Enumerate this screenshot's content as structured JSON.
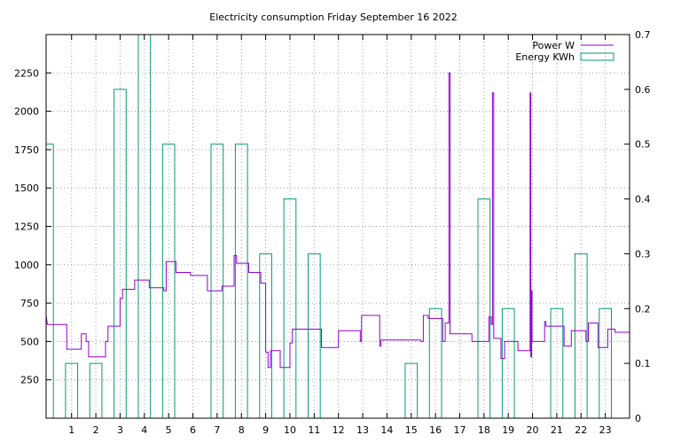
{
  "chart_data": {
    "type": "line",
    "title": "Electricity consumption Friday September 16 2022",
    "xlim": [
      -0.05,
      24.0
    ],
    "ylim": [
      0,
      2500
    ],
    "y2lim": [
      0,
      0.7
    ],
    "grid": true,
    "legend_position": "top-right",
    "x_ticks": [
      1,
      2,
      3,
      4,
      5,
      6,
      7,
      8,
      9,
      10,
      11,
      12,
      13,
      14,
      15,
      16,
      17,
      18,
      19,
      20,
      21,
      22,
      23
    ],
    "y_ticks": [
      250,
      500,
      750,
      1000,
      1250,
      1500,
      1750,
      2000,
      2250
    ],
    "y2_ticks": [
      "0",
      "0.1",
      "0.2",
      "0.3",
      "0.4",
      "0.5",
      "0.6",
      "0.7"
    ],
    "series": [
      {
        "name": "Power W",
        "color": "#9400d3",
        "style": "steps",
        "axis": "y",
        "points": [
          [
            -0.05,
            670
          ],
          [
            0.0,
            610
          ],
          [
            0.8,
            610
          ],
          [
            0.8,
            450
          ],
          [
            1.4,
            450
          ],
          [
            1.4,
            550
          ],
          [
            1.6,
            550
          ],
          [
            1.6,
            500
          ],
          [
            1.7,
            500
          ],
          [
            1.7,
            400
          ],
          [
            2.4,
            400
          ],
          [
            2.4,
            500
          ],
          [
            2.5,
            500
          ],
          [
            2.5,
            600
          ],
          [
            3.0,
            600
          ],
          [
            3.0,
            780
          ],
          [
            3.1,
            780
          ],
          [
            3.1,
            840
          ],
          [
            3.6,
            840
          ],
          [
            3.6,
            900
          ],
          [
            4.2,
            900
          ],
          [
            4.2,
            850
          ],
          [
            4.8,
            850
          ],
          [
            4.8,
            830
          ],
          [
            4.9,
            830
          ],
          [
            4.9,
            1020
          ],
          [
            5.3,
            1020
          ],
          [
            5.3,
            950
          ],
          [
            5.9,
            950
          ],
          [
            5.9,
            930
          ],
          [
            6.6,
            930
          ],
          [
            6.6,
            830
          ],
          [
            7.2,
            830
          ],
          [
            7.2,
            860
          ],
          [
            7.7,
            860
          ],
          [
            7.7,
            1060
          ],
          [
            7.8,
            1060
          ],
          [
            7.8,
            1010
          ],
          [
            8.3,
            1010
          ],
          [
            8.3,
            950
          ],
          [
            8.8,
            950
          ],
          [
            8.8,
            880
          ],
          [
            9.0,
            880
          ],
          [
            9.0,
            430
          ],
          [
            9.1,
            430
          ],
          [
            9.1,
            330
          ],
          [
            9.2,
            330
          ],
          [
            9.2,
            440
          ],
          [
            9.6,
            440
          ],
          [
            9.6,
            330
          ],
          [
            10.0,
            330
          ],
          [
            10.0,
            490
          ],
          [
            10.1,
            490
          ],
          [
            10.1,
            580
          ],
          [
            11.3,
            580
          ],
          [
            11.3,
            460
          ],
          [
            12.0,
            460
          ],
          [
            12.0,
            570
          ],
          [
            12.9,
            570
          ],
          [
            12.9,
            500
          ],
          [
            12.95,
            500
          ],
          [
            12.95,
            670
          ],
          [
            13.7,
            670
          ],
          [
            13.7,
            470
          ],
          [
            13.75,
            470
          ],
          [
            13.75,
            510
          ],
          [
            15.4,
            510
          ],
          [
            15.4,
            500
          ],
          [
            15.5,
            500
          ],
          [
            15.5,
            670
          ],
          [
            15.7,
            670
          ],
          [
            15.7,
            650
          ],
          [
            16.3,
            650
          ],
          [
            16.3,
            500
          ],
          [
            16.4,
            500
          ],
          [
            16.4,
            620
          ],
          [
            16.55,
            620
          ],
          [
            16.55,
            2250
          ],
          [
            16.6,
            2250
          ],
          [
            16.6,
            550
          ],
          [
            17.5,
            550
          ],
          [
            17.5,
            500
          ],
          [
            18.2,
            500
          ],
          [
            18.2,
            660
          ],
          [
            18.3,
            660
          ],
          [
            18.3,
            610
          ],
          [
            18.35,
            610
          ],
          [
            18.35,
            2120
          ],
          [
            18.4,
            2120
          ],
          [
            18.4,
            520
          ],
          [
            18.7,
            520
          ],
          [
            18.7,
            390
          ],
          [
            18.85,
            390
          ],
          [
            18.85,
            500
          ],
          [
            19.4,
            500
          ],
          [
            19.4,
            440
          ],
          [
            19.9,
            440
          ],
          [
            19.9,
            2120
          ],
          [
            19.93,
            2120
          ],
          [
            19.93,
            400
          ],
          [
            19.96,
            400
          ],
          [
            19.96,
            830
          ],
          [
            19.98,
            830
          ],
          [
            19.98,
            500
          ],
          [
            20.5,
            500
          ],
          [
            20.5,
            630
          ],
          [
            20.55,
            630
          ],
          [
            20.55,
            600
          ],
          [
            21.3,
            600
          ],
          [
            21.3,
            470
          ],
          [
            21.6,
            470
          ],
          [
            21.6,
            570
          ],
          [
            22.2,
            570
          ],
          [
            22.2,
            500
          ],
          [
            22.3,
            500
          ],
          [
            22.3,
            620
          ],
          [
            22.7,
            620
          ],
          [
            22.7,
            460
          ],
          [
            23.1,
            460
          ],
          [
            23.1,
            580
          ],
          [
            23.4,
            580
          ],
          [
            23.4,
            560
          ],
          [
            24.0,
            560
          ]
        ]
      },
      {
        "name": "Energy KWh",
        "color": "#009e73",
        "style": "boxes",
        "axis": "y2",
        "width": 0.5,
        "x": [
          0,
          1,
          2,
          3,
          4,
          5,
          6,
          7,
          8,
          9,
          10,
          11,
          12,
          13,
          14,
          15,
          16,
          17,
          18,
          19,
          20,
          21,
          22,
          23
        ],
        "values": [
          0.5,
          0.1,
          0.1,
          0.6,
          0.7,
          0.5,
          0,
          0.5,
          0.5,
          0.3,
          0.4,
          0.3,
          0,
          0,
          0,
          0.1,
          0.2,
          0,
          0.4,
          0.2,
          0,
          0.2,
          0.3,
          0.2
        ]
      }
    ]
  }
}
